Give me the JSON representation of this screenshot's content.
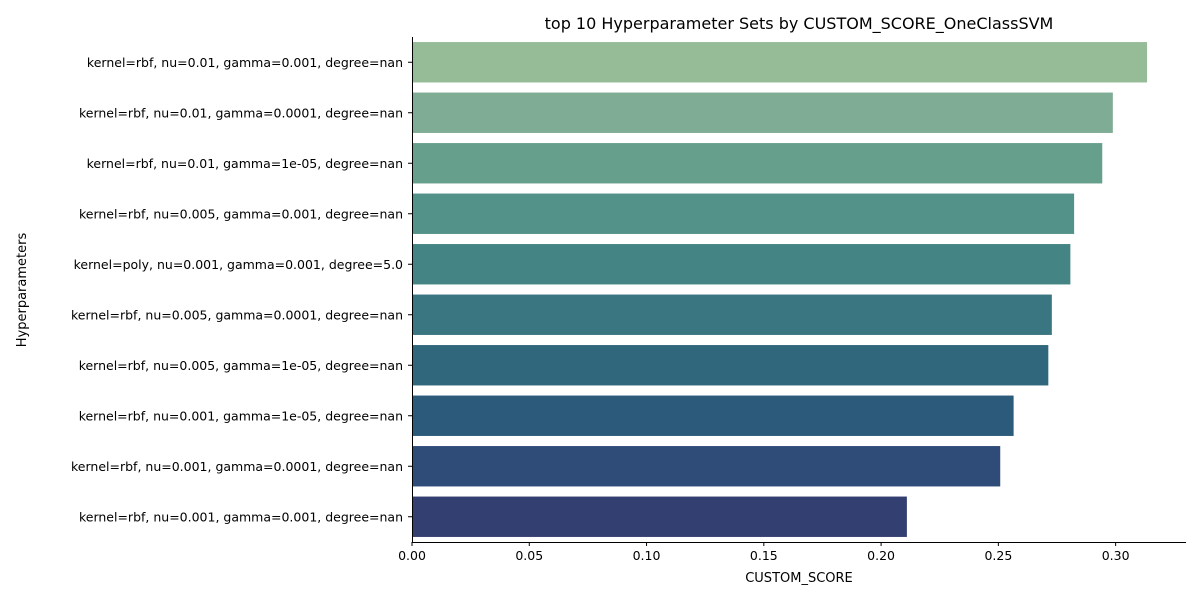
{
  "chart_data": {
    "type": "bar",
    "orientation": "horizontal",
    "title": "top 10 Hyperparameter Sets by CUSTOM_SCORE_OneClassSVM",
    "xlabel": "CUSTOM_SCORE",
    "ylabel": "Hyperparameters",
    "xlim": [
      0,
      0.33
    ],
    "xticks": [
      "0.00",
      "0.05",
      "0.10",
      "0.15",
      "0.20",
      "0.25",
      "0.30"
    ],
    "grid": false,
    "categories": [
      "kernel=rbf, nu=0.01, gamma=0.001, degree=nan",
      "kernel=rbf, nu=0.01, gamma=0.0001, degree=nan",
      "kernel=rbf, nu=0.01, gamma=1e-05, degree=nan",
      "kernel=rbf, nu=0.005, gamma=0.001, degree=nan",
      "kernel=poly, nu=0.001, gamma=0.001, degree=5.0",
      "kernel=rbf, nu=0.005, gamma=0.0001, degree=nan",
      "kernel=rbf, nu=0.005, gamma=1e-05, degree=nan",
      "kernel=rbf, nu=0.001, gamma=1e-05, degree=nan",
      "kernel=rbf, nu=0.001, gamma=0.0001, degree=nan",
      "kernel=rbf, nu=0.001, gamma=0.001, degree=nan"
    ],
    "values": [
      0.3134,
      0.2988,
      0.2943,
      0.2823,
      0.2807,
      0.2728,
      0.2713,
      0.2565,
      0.2508,
      0.211
    ],
    "colors": [
      "#95bc97",
      "#7eac94",
      "#66a08d",
      "#539289",
      "#448485",
      "#3a7681",
      "#30677d",
      "#2b5a7b",
      "#2f4c79",
      "#333f70"
    ]
  }
}
